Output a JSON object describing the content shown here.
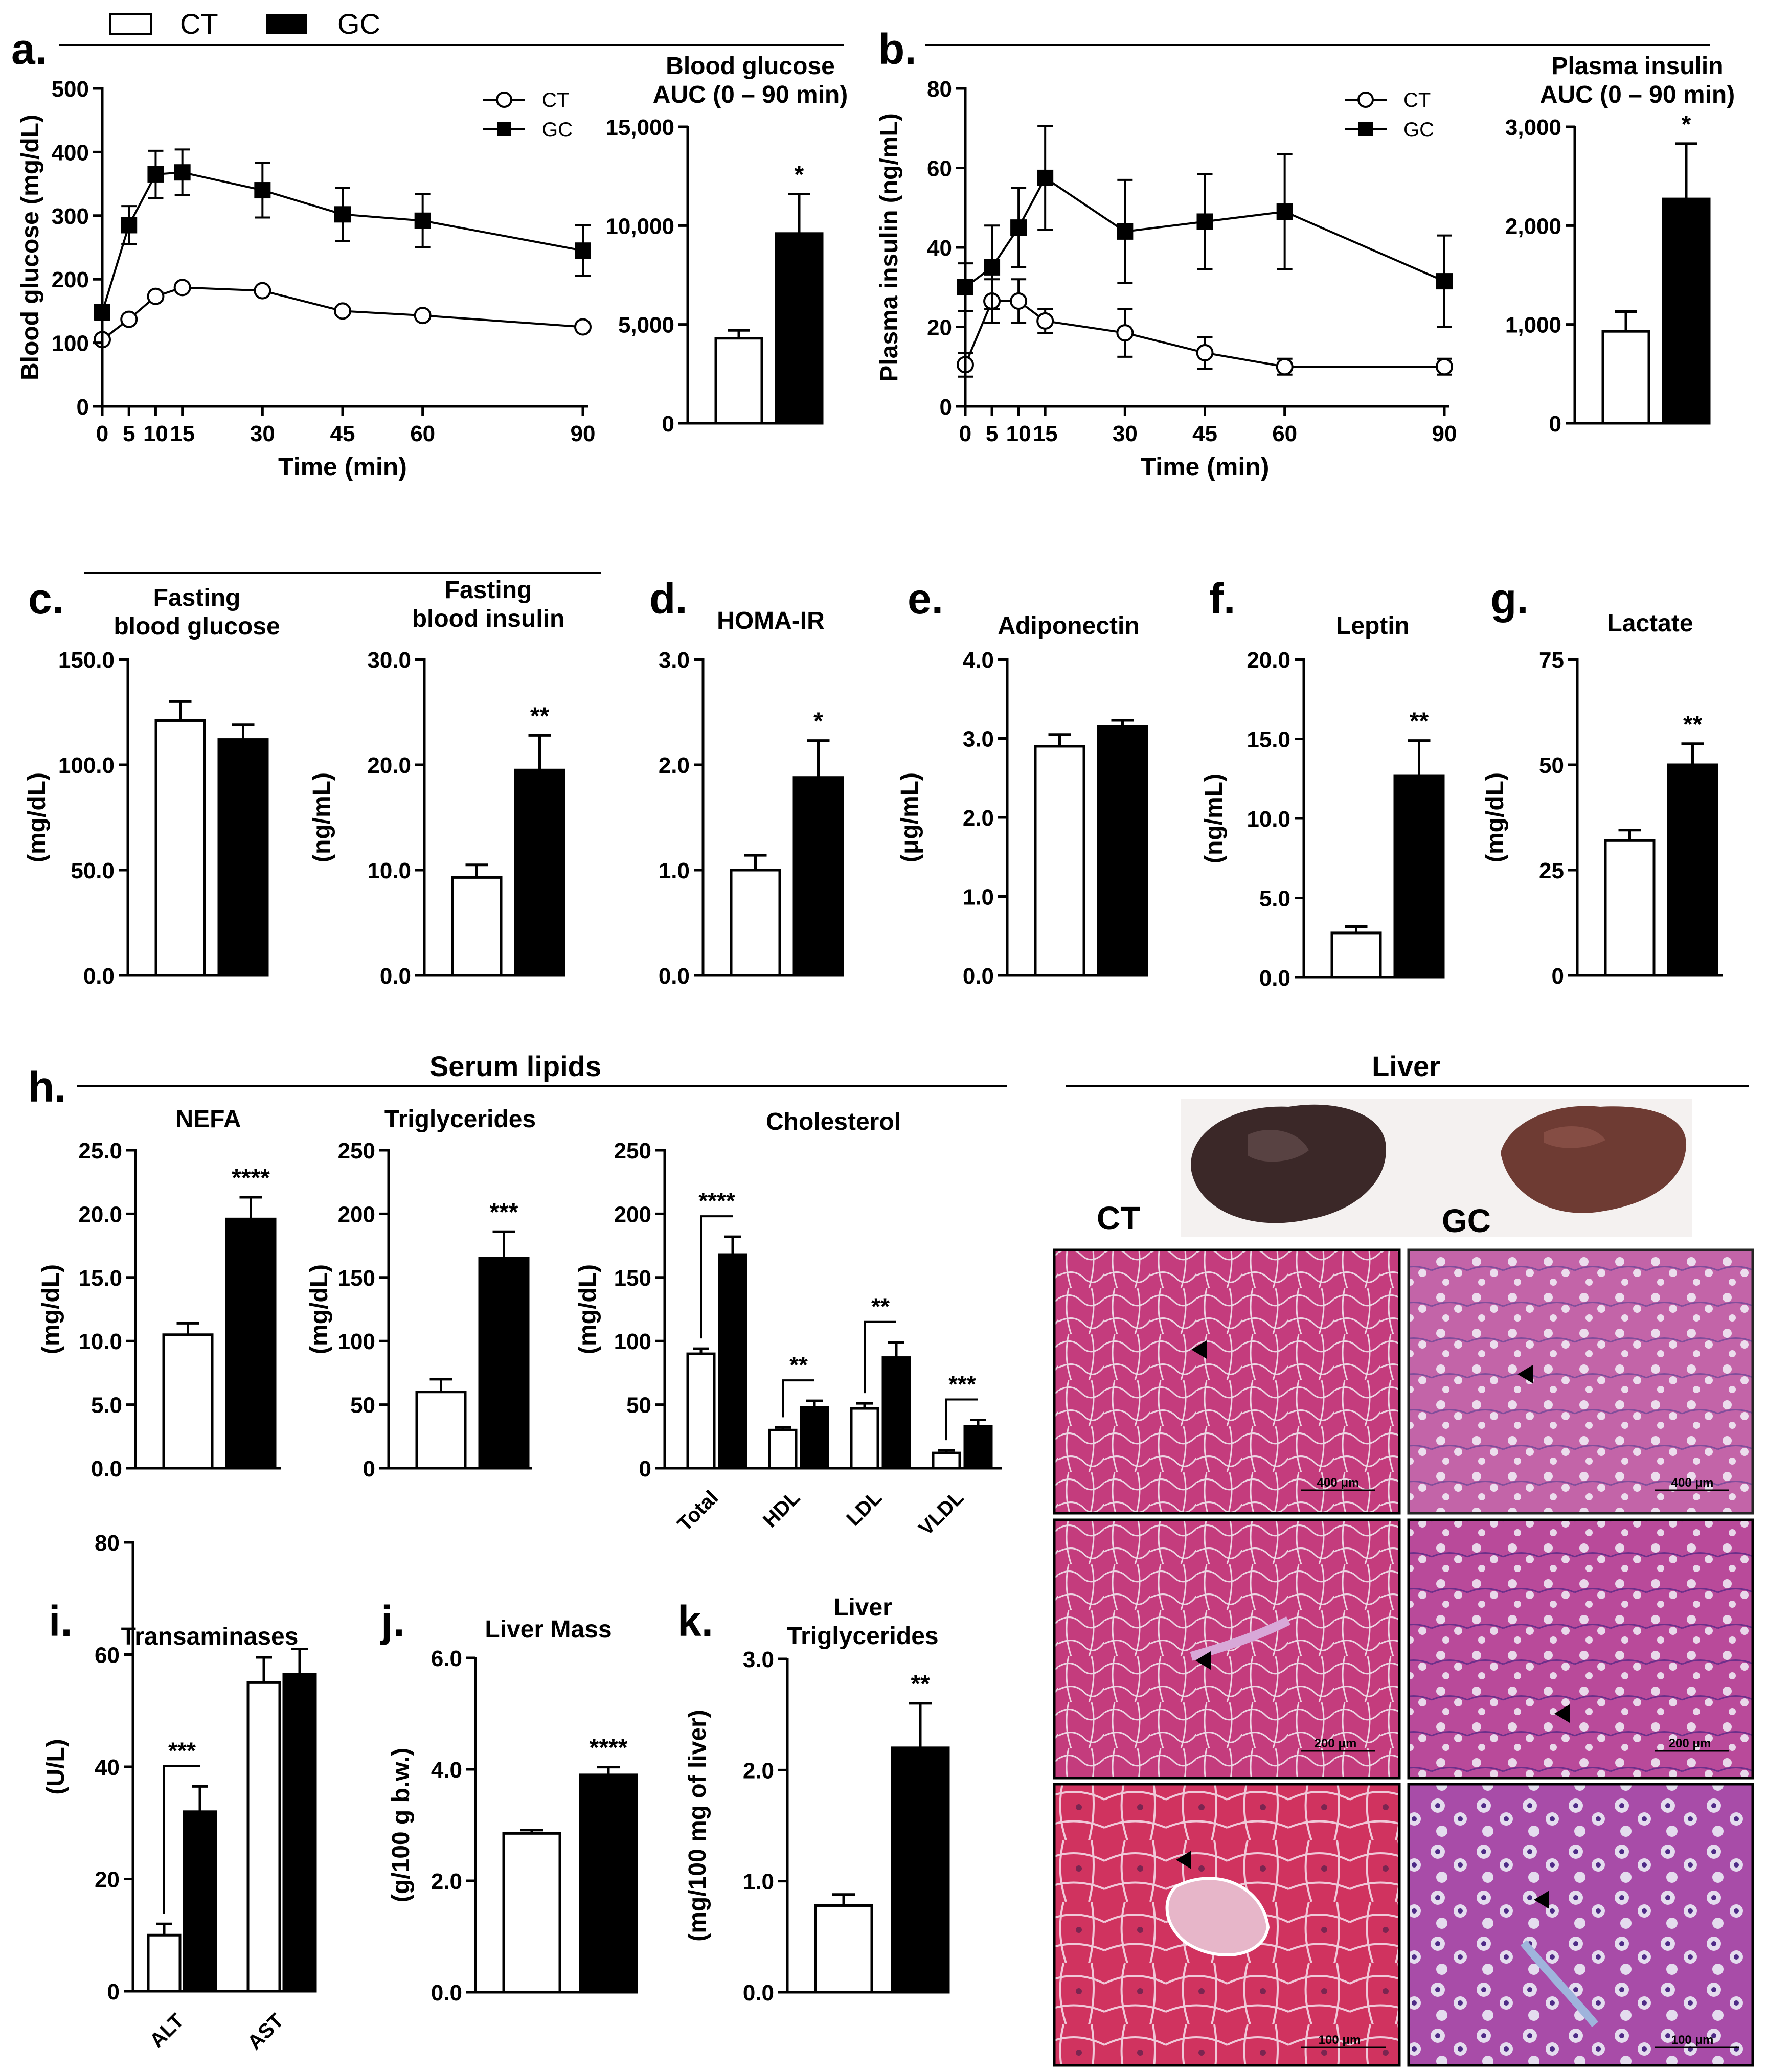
{
  "legend": [
    {
      "label": "CT",
      "fill": "#ffffff"
    },
    {
      "label": "GC",
      "fill": "#000000"
    }
  ],
  "colors": {
    "ct": "#ffffff",
    "gc": "#000000",
    "axis": "#000000",
    "tissue": "#c2407e",
    "liver_dark": "#3a2626",
    "liver_light": "#6b3a32"
  },
  "panels": {
    "a": "a.",
    "b": "b.",
    "c": "c.",
    "d": "d.",
    "e": "e.",
    "f": "f.",
    "g": "g.",
    "h": "h.",
    "i": "i.",
    "j": "j.",
    "k": "k."
  },
  "sections": {
    "serum_lipids": "Serum lipids",
    "liver": "Liver"
  },
  "photo_labels": {
    "ct": "CT",
    "gc": "GC"
  },
  "scale_bars": [
    "400 μm",
    "400 μm",
    "200 μm",
    "200 μm",
    "100 μm",
    "100 μm"
  ],
  "chart_data": [
    {
      "id": "a_line",
      "type": "line",
      "ylabel": "Blood glucose (mg/dL)",
      "xlabel": "Time (min)",
      "ylim": [
        0,
        500
      ],
      "yticks": [
        "0",
        "100",
        "200",
        "300",
        "400",
        "500"
      ],
      "xlim": [
        0,
        90
      ],
      "xticks": [
        0,
        5,
        10,
        15,
        30,
        45,
        60,
        90
      ],
      "xtick_labels": [
        "0",
        "5",
        "10",
        "15",
        "30",
        "45",
        "60",
        "90"
      ],
      "series": [
        {
          "name": "CT",
          "marker": "open-circle",
          "x": [
            0,
            5,
            10,
            15,
            30,
            45,
            60,
            90
          ],
          "y": [
            105,
            137,
            173,
            187,
            182,
            150,
            143,
            125
          ],
          "err": [
            5,
            5,
            6,
            6,
            6,
            5,
            5,
            5
          ]
        },
        {
          "name": "GC",
          "marker": "filled-square",
          "x": [
            0,
            5,
            10,
            15,
            30,
            45,
            60,
            90
          ],
          "y": [
            148,
            285,
            365,
            368,
            340,
            302,
            292,
            245
          ],
          "err": [
            12,
            30,
            37,
            36,
            43,
            42,
            42,
            40
          ]
        }
      ]
    },
    {
      "id": "a_auc",
      "type": "bar",
      "title": "Blood glucose\nAUC (0 – 90 min)",
      "categories": [
        "CT",
        "GC"
      ],
      "values": [
        4300,
        9600
      ],
      "err": [
        400,
        2000
      ],
      "ylim": [
        0,
        15000
      ],
      "yticks": [
        "0",
        "5,000",
        "10,000",
        "15,000"
      ],
      "significance": "*"
    },
    {
      "id": "b_line",
      "type": "line",
      "ylabel": "Plasma insulin (ng/mL)",
      "xlabel": "Time (min)",
      "ylim": [
        0,
        80
      ],
      "yticks": [
        "0",
        "20",
        "40",
        "60",
        "80"
      ],
      "xlim": [
        0,
        90
      ],
      "xticks": [
        0,
        5,
        10,
        15,
        30,
        45,
        60,
        90
      ],
      "xtick_labels": [
        "0",
        "5",
        "10",
        "15",
        "30",
        "45",
        "60",
        "90"
      ],
      "series": [
        {
          "name": "CT",
          "marker": "open-circle",
          "x": [
            0,
            5,
            10,
            15,
            30,
            45,
            60,
            90
          ],
          "y": [
            10.5,
            26.5,
            26.5,
            21.5,
            18.5,
            13.5,
            10,
            10
          ],
          "err": [
            3,
            5.5,
            5.5,
            3,
            6,
            4,
            2,
            2
          ]
        },
        {
          "name": "GC",
          "marker": "filled-square",
          "x": [
            0,
            5,
            10,
            15,
            30,
            45,
            60,
            90
          ],
          "y": [
            30,
            35,
            45,
            57.5,
            44,
            46.5,
            49,
            31.5
          ],
          "err": [
            6,
            10.5,
            10,
            13,
            13,
            12,
            14.5,
            11.5
          ]
        }
      ]
    },
    {
      "id": "b_auc",
      "type": "bar",
      "title": "Plasma insulin\nAUC (0 – 90 min)",
      "categories": [
        "CT",
        "GC"
      ],
      "values": [
        930,
        2270
      ],
      "err": [
        200,
        560
      ],
      "ylim": [
        0,
        3000
      ],
      "yticks": [
        "0",
        "1,000",
        "2,000",
        "3,000"
      ],
      "significance": "*"
    },
    {
      "id": "c1",
      "type": "bar",
      "title": "Fasting\nblood glucose",
      "ylabel": "(mg/dL)",
      "categories": [
        "CT",
        "GC"
      ],
      "values": [
        121,
        112
      ],
      "err": [
        9,
        7
      ],
      "ylim": [
        0,
        150
      ],
      "yticks": [
        "0.0",
        "50.0",
        "100.0",
        "150.0"
      ],
      "significance": ""
    },
    {
      "id": "c2",
      "type": "bar",
      "title": "Fasting\nblood insulin",
      "ylabel": "(ng/mL)",
      "categories": [
        "CT",
        "GC"
      ],
      "values": [
        9.3,
        19.5
      ],
      "err": [
        1.2,
        3.3
      ],
      "ylim": [
        0,
        30
      ],
      "yticks": [
        "0.0",
        "10.0",
        "20.0",
        "30.0"
      ],
      "significance": "**"
    },
    {
      "id": "d",
      "type": "bar",
      "title": "HOMA-IR",
      "ylabel": "",
      "categories": [
        "CT",
        "GC"
      ],
      "values": [
        1.0,
        1.88
      ],
      "err": [
        0.14,
        0.35
      ],
      "ylim": [
        0,
        3
      ],
      "yticks": [
        "0.0",
        "1.0",
        "2.0",
        "3.0"
      ],
      "significance": "*"
    },
    {
      "id": "e",
      "type": "bar",
      "title": "Adiponectin",
      "ylabel": "(μg/mL)",
      "categories": [
        "CT",
        "GC"
      ],
      "values": [
        2.9,
        3.15
      ],
      "err": [
        0.15,
        0.08
      ],
      "ylim": [
        0,
        4
      ],
      "yticks": [
        "0.0",
        "1.0",
        "2.0",
        "3.0",
        "4.0"
      ],
      "significance": ""
    },
    {
      "id": "f",
      "type": "bar",
      "title": "Leptin",
      "ylabel": "(ng/mL)",
      "categories": [
        "CT",
        "GC"
      ],
      "values": [
        2.8,
        12.7
      ],
      "err": [
        0.4,
        2.2
      ],
      "ylim": [
        0,
        20
      ],
      "yticks": [
        "0.0",
        "5.0",
        "10.0",
        "15.0",
        "20.0"
      ],
      "significance": "**"
    },
    {
      "id": "g",
      "type": "bar",
      "title": "Lactate",
      "ylabel": "(mg/dL)",
      "categories": [
        "CT",
        "GC"
      ],
      "values": [
        32,
        50
      ],
      "err": [
        2.5,
        5
      ],
      "ylim": [
        0,
        75
      ],
      "yticks": [
        "0",
        "25",
        "50",
        "75"
      ],
      "significance": "**"
    },
    {
      "id": "h1",
      "type": "bar",
      "title": "NEFA",
      "ylabel": "(mg/dL)",
      "categories": [
        "CT",
        "GC"
      ],
      "values": [
        10.5,
        19.6
      ],
      "err": [
        0.9,
        1.7
      ],
      "ylim": [
        0,
        25
      ],
      "yticks": [
        "0.0",
        "5.0",
        "10.0",
        "15.0",
        "20.0",
        "25.0"
      ],
      "significance": "****"
    },
    {
      "id": "h2",
      "type": "bar",
      "title": "Triglycerides",
      "ylabel": "(mg/dL)",
      "categories": [
        "CT",
        "GC"
      ],
      "values": [
        60,
        165
      ],
      "err": [
        10,
        21
      ],
      "ylim": [
        0,
        250
      ],
      "yticks": [
        "0",
        "50",
        "100",
        "150",
        "200",
        "250"
      ],
      "significance": "***"
    },
    {
      "id": "h3",
      "type": "bar",
      "title": "Cholesterol",
      "ylabel": "(mg/dL)",
      "categories": [
        "Total",
        "HDL",
        "LDL",
        "VLDL"
      ],
      "series": [
        {
          "name": "CT",
          "values": [
            90,
            30,
            47,
            12
          ],
          "err": [
            4,
            2,
            4,
            2
          ]
        },
        {
          "name": "GC",
          "values": [
            168,
            48,
            87,
            33
          ],
          "err": [
            14,
            5,
            12,
            5
          ]
        }
      ],
      "significance": [
        "****",
        "**",
        "**",
        "***"
      ],
      "ylim": [
        0,
        250
      ],
      "yticks": [
        "0",
        "50",
        "100",
        "150",
        "200",
        "250"
      ]
    },
    {
      "id": "i",
      "type": "bar",
      "title": "Transaminases",
      "ylabel": "(U/L)",
      "categories": [
        "ALT",
        "AST"
      ],
      "series": [
        {
          "name": "CT",
          "values": [
            10,
            55
          ],
          "err": [
            2,
            4.5
          ]
        },
        {
          "name": "GC",
          "values": [
            32,
            56.5
          ],
          "err": [
            4.5,
            4.5
          ]
        }
      ],
      "significance": [
        "***",
        ""
      ],
      "ylim": [
        0,
        80
      ],
      "yticks": [
        "0",
        "20",
        "40",
        "60",
        "80"
      ]
    },
    {
      "id": "j",
      "type": "bar",
      "title": "Liver Mass",
      "ylabel": "(g/100 g b.w.)",
      "categories": [
        "CT",
        "GC"
      ],
      "values": [
        2.85,
        3.9
      ],
      "err": [
        0.06,
        0.14
      ],
      "ylim": [
        0,
        6
      ],
      "yticks": [
        "0.0",
        "2.0",
        "4.0",
        "6.0"
      ],
      "significance": "****"
    },
    {
      "id": "k",
      "type": "bar",
      "title": "Liver\nTriglycerides",
      "ylabel": "(mg/100 mg of liver)",
      "categories": [
        "CT",
        "GC"
      ],
      "values": [
        0.78,
        2.2
      ],
      "err": [
        0.1,
        0.4
      ],
      "ylim": [
        0,
        3
      ],
      "yticks": [
        "0.0",
        "1.0",
        "2.0",
        "3.0"
      ],
      "significance": "**"
    }
  ]
}
